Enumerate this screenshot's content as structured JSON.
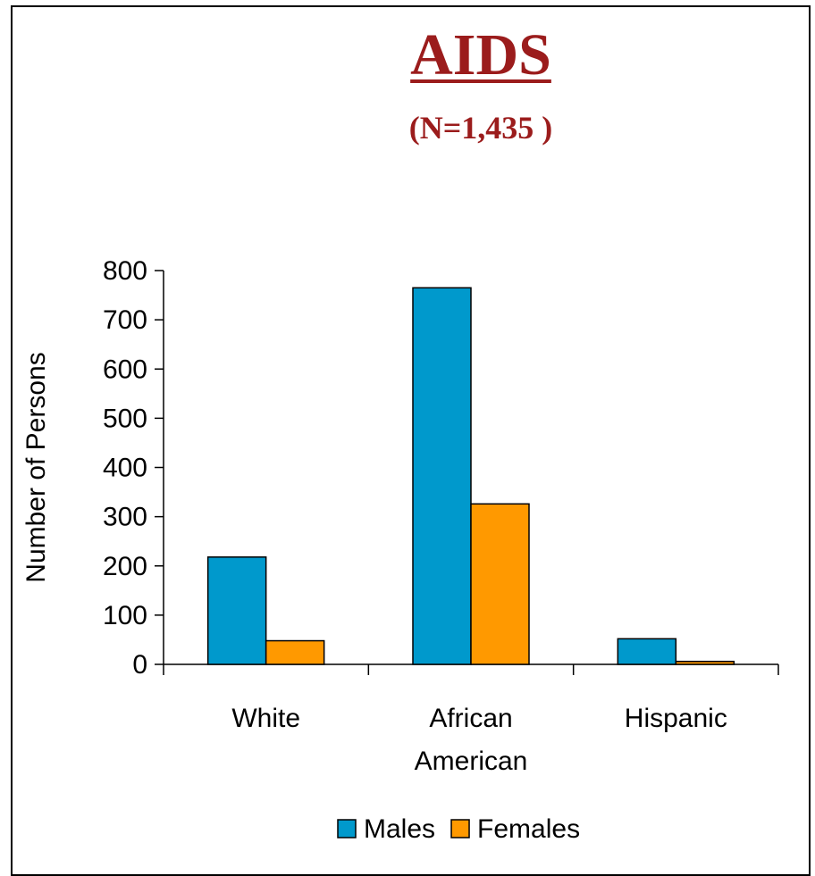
{
  "chart_data": {
    "type": "bar",
    "title": "AIDS",
    "subtitle": "(N=1,435 )",
    "ylabel": "Number of Persons",
    "xlabel": "",
    "ylim": [
      0,
      800
    ],
    "yticks": [
      0,
      100,
      200,
      300,
      400,
      500,
      600,
      700,
      800
    ],
    "categories": [
      [
        "White"
      ],
      [
        "African",
        "American"
      ],
      [
        "Hispanic"
      ]
    ],
    "series": [
      {
        "name": "Males",
        "values": [
          218,
          765,
          52
        ],
        "color": "#0099cc"
      },
      {
        "name": "Females",
        "values": [
          48,
          326,
          6
        ],
        "color": "#ff9900"
      }
    ],
    "legend": "bottom",
    "grid": false
  }
}
